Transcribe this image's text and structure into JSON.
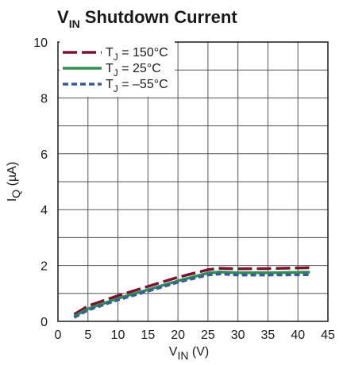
{
  "chart_data": {
    "type": "line",
    "title": {
      "main": "V",
      "sub": "IN",
      "rest": " Shutdown Current"
    },
    "xlabel": {
      "main": "V",
      "sub": "IN",
      "rest": " (V)"
    },
    "ylabel": {
      "main": "I",
      "sub": "Q",
      "rest": " (µA)"
    },
    "xlim": [
      0,
      45
    ],
    "ylim": [
      0,
      10
    ],
    "xticks": [
      "0",
      "5",
      "10",
      "15",
      "20",
      "25",
      "30",
      "35",
      "40",
      "45"
    ],
    "yticks": [
      "0",
      "2",
      "4",
      "6",
      "8",
      "10"
    ],
    "grid": true,
    "legend_position": "top-left",
    "series": [
      {
        "name": {
          "main": "T",
          "sub": "J",
          "rest": " = 150°C"
        },
        "color": "#7a1230",
        "dash": "long-dash",
        "x": [
          2.7,
          5,
          10,
          15,
          20,
          25,
          27,
          30,
          35,
          42
        ],
        "y": [
          0.25,
          0.55,
          0.92,
          1.25,
          1.58,
          1.85,
          1.9,
          1.88,
          1.89,
          1.92
        ]
      },
      {
        "name": {
          "main": "T",
          "sub": "J",
          "rest": " = 25°C"
        },
        "color": "#2f8f4e",
        "dash": "solid",
        "x": [
          2.7,
          5,
          10,
          15,
          20,
          25,
          27,
          30,
          35,
          42
        ],
        "y": [
          0.18,
          0.45,
          0.82,
          1.13,
          1.45,
          1.73,
          1.77,
          1.74,
          1.74,
          1.76
        ]
      },
      {
        "name": {
          "main": "T",
          "sub": "J",
          "rest": " = –55°C"
        },
        "color": "#3a5a9c",
        "dash": "short-dash",
        "x": [
          2.7,
          5,
          10,
          15,
          20,
          25,
          27,
          30,
          35,
          42
        ],
        "y": [
          0.14,
          0.4,
          0.77,
          1.08,
          1.4,
          1.66,
          1.7,
          1.66,
          1.66,
          1.67
        ]
      }
    ]
  }
}
